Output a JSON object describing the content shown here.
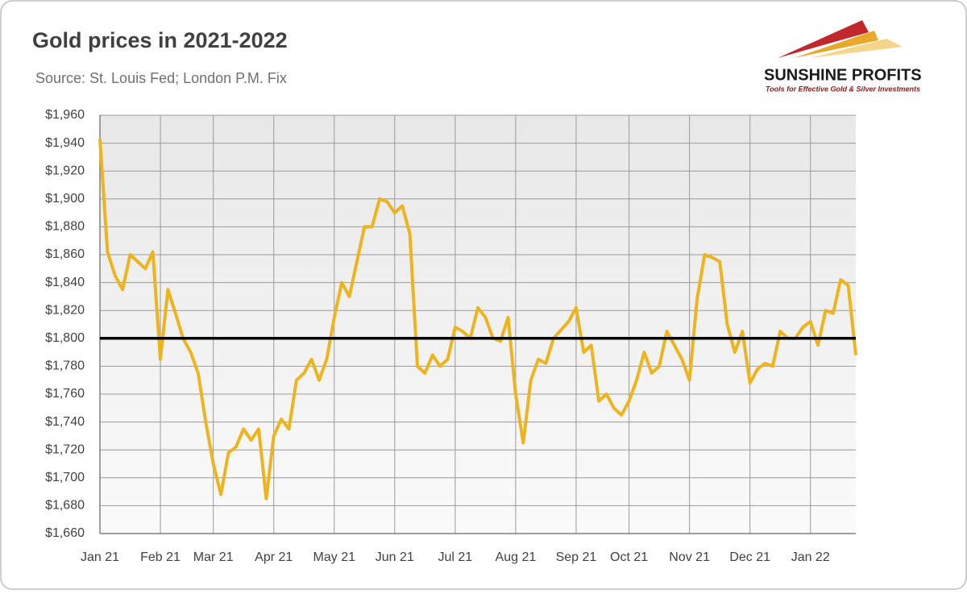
{
  "chart_data": {
    "type": "line",
    "title": "Gold prices in 2021-2022",
    "subtitle": "Source: St. Louis Fed; London P.M. Fix",
    "categories": [
      "Jan 21",
      null,
      null,
      null,
      null,
      null,
      null,
      null,
      "Feb 21",
      null,
      null,
      null,
      null,
      null,
      null,
      "Mar 21",
      null,
      null,
      null,
      null,
      null,
      null,
      null,
      "Apr 21",
      null,
      null,
      null,
      null,
      null,
      null,
      null,
      "May 21",
      null,
      null,
      null,
      null,
      null,
      null,
      null,
      "Jun 21",
      null,
      null,
      null,
      null,
      null,
      null,
      null,
      "Jul 21",
      null,
      null,
      null,
      null,
      null,
      null,
      null,
      "Aug 21",
      null,
      null,
      null,
      null,
      null,
      null,
      null,
      "Sep 21",
      null,
      null,
      null,
      null,
      null,
      null,
      "Oct 21",
      null,
      null,
      null,
      null,
      null,
      null,
      null,
      "Nov 21",
      null,
      null,
      null,
      null,
      null,
      null,
      null,
      "Dec 21",
      null,
      null,
      null,
      null,
      null,
      null,
      null,
      "Jan 22",
      null,
      null,
      null,
      null,
      null,
      null
    ],
    "values": [
      1943,
      1862,
      1845,
      1835,
      1860,
      1855,
      1850,
      1862,
      1785,
      1835,
      1818,
      1800,
      1790,
      1775,
      1740,
      1710,
      1688,
      1718,
      1722,
      1735,
      1727,
      1735,
      1685,
      1730,
      1742,
      1735,
      1770,
      1775,
      1785,
      1770,
      1785,
      1815,
      1840,
      1830,
      1855,
      1880,
      1880,
      1900,
      1898,
      1890,
      1895,
      1875,
      1780,
      1775,
      1788,
      1780,
      1785,
      1808,
      1805,
      1800,
      1822,
      1815,
      1800,
      1798,
      1815,
      1760,
      1725,
      1770,
      1785,
      1782,
      1800,
      1806,
      1812,
      1822,
      1790,
      1795,
      1755,
      1760,
      1750,
      1745,
      1755,
      1770,
      1790,
      1775,
      1780,
      1805,
      1795,
      1785,
      1770,
      1828,
      1860,
      1858,
      1855,
      1810,
      1790,
      1805,
      1768,
      1778,
      1782,
      1780,
      1805,
      1800,
      1800,
      1808,
      1812,
      1795,
      1820,
      1818,
      1842,
      1838,
      1788
    ],
    "color": "#edb41e",
    "reference_line": 1800,
    "ylim": [
      1660,
      1960
    ],
    "yticks": [
      {
        "value": 1660,
        "label": "$1,660"
      },
      {
        "value": 1680,
        "label": "$1,680"
      },
      {
        "value": 1700,
        "label": "$1,700"
      },
      {
        "value": 1720,
        "label": "$1,720"
      },
      {
        "value": 1740,
        "label": "$1,740"
      },
      {
        "value": 1760,
        "label": "$1,760"
      },
      {
        "value": 1780,
        "label": "$1,780"
      },
      {
        "value": 1800,
        "label": "$1,800"
      },
      {
        "value": 1820,
        "label": "$1,820"
      },
      {
        "value": 1840,
        "label": "$1,840"
      },
      {
        "value": 1860,
        "label": "$1,860"
      },
      {
        "value": 1880,
        "label": "$1,880"
      },
      {
        "value": 1900,
        "label": "$1,900"
      },
      {
        "value": 1920,
        "label": "$1,920"
      },
      {
        "value": 1940,
        "label": "$1,940"
      },
      {
        "value": 1960,
        "label": "$1,960"
      }
    ],
    "grid": true
  },
  "logo": {
    "name": "SUNSHINE PROFITS",
    "tagline": "Tools for Effective Gold & Silver Investments"
  }
}
